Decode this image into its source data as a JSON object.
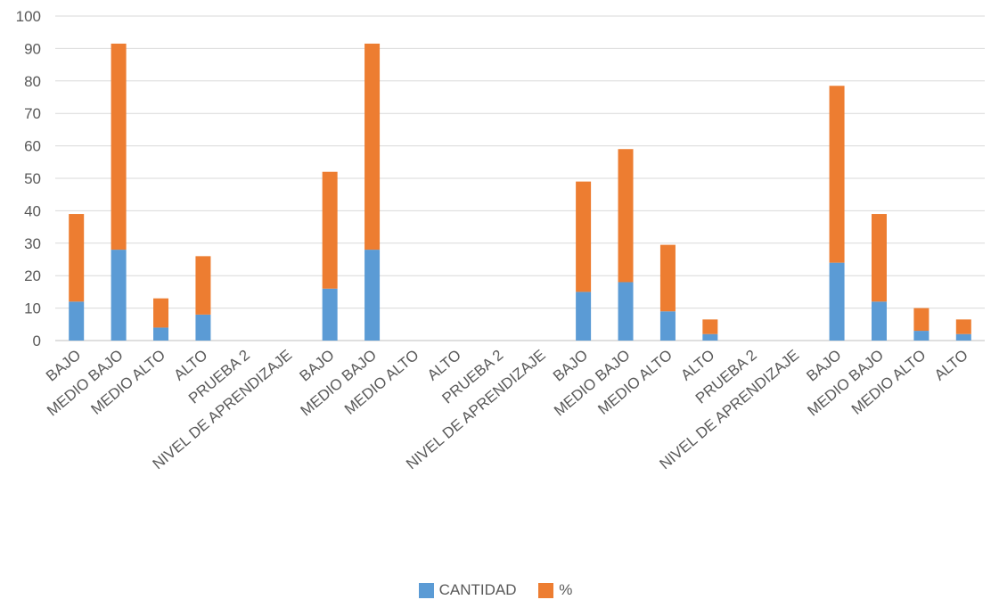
{
  "chart_data": {
    "type": "bar",
    "stacked": true,
    "categories": [
      "BAJO",
      "MEDIO BAJO",
      "MEDIO ALTO",
      "ALTO",
      "PRUEBA 2",
      "NIVEL DE APRENDIZAJE",
      "BAJO",
      "MEDIO BAJO",
      "MEDIO ALTO",
      "ALTO",
      "PRUEBA 2",
      "NIVEL DE APRENDIZAJE",
      "BAJO",
      "MEDIO BAJO",
      "MEDIO ALTO",
      "ALTO",
      "PRUEBA 2",
      "NIVEL DE APRENDIZAJE",
      "BAJO",
      "MEDIO BAJO",
      "MEDIO ALTO",
      "ALTO"
    ],
    "series": [
      {
        "name": "CANTIDAD",
        "color": "#5b9bd5",
        "values": [
          12,
          28,
          4,
          8,
          null,
          null,
          16,
          28,
          null,
          null,
          null,
          null,
          15,
          18,
          9,
          2,
          null,
          null,
          24,
          12,
          3,
          2
        ]
      },
      {
        "name": "%",
        "color": "#ed7d31",
        "values": [
          27,
          63.5,
          9,
          18,
          null,
          null,
          36,
          63.5,
          null,
          null,
          null,
          null,
          34,
          41,
          20.5,
          4.5,
          null,
          null,
          54.5,
          27,
          7,
          4.5
        ]
      }
    ],
    "ylim": [
      0,
      100
    ],
    "yticks": [
      0,
      10,
      20,
      30,
      40,
      50,
      60,
      70,
      80,
      90,
      100
    ],
    "grid": true,
    "legend_position": "bottom",
    "title": "",
    "xlabel": "",
    "ylabel": ""
  }
}
